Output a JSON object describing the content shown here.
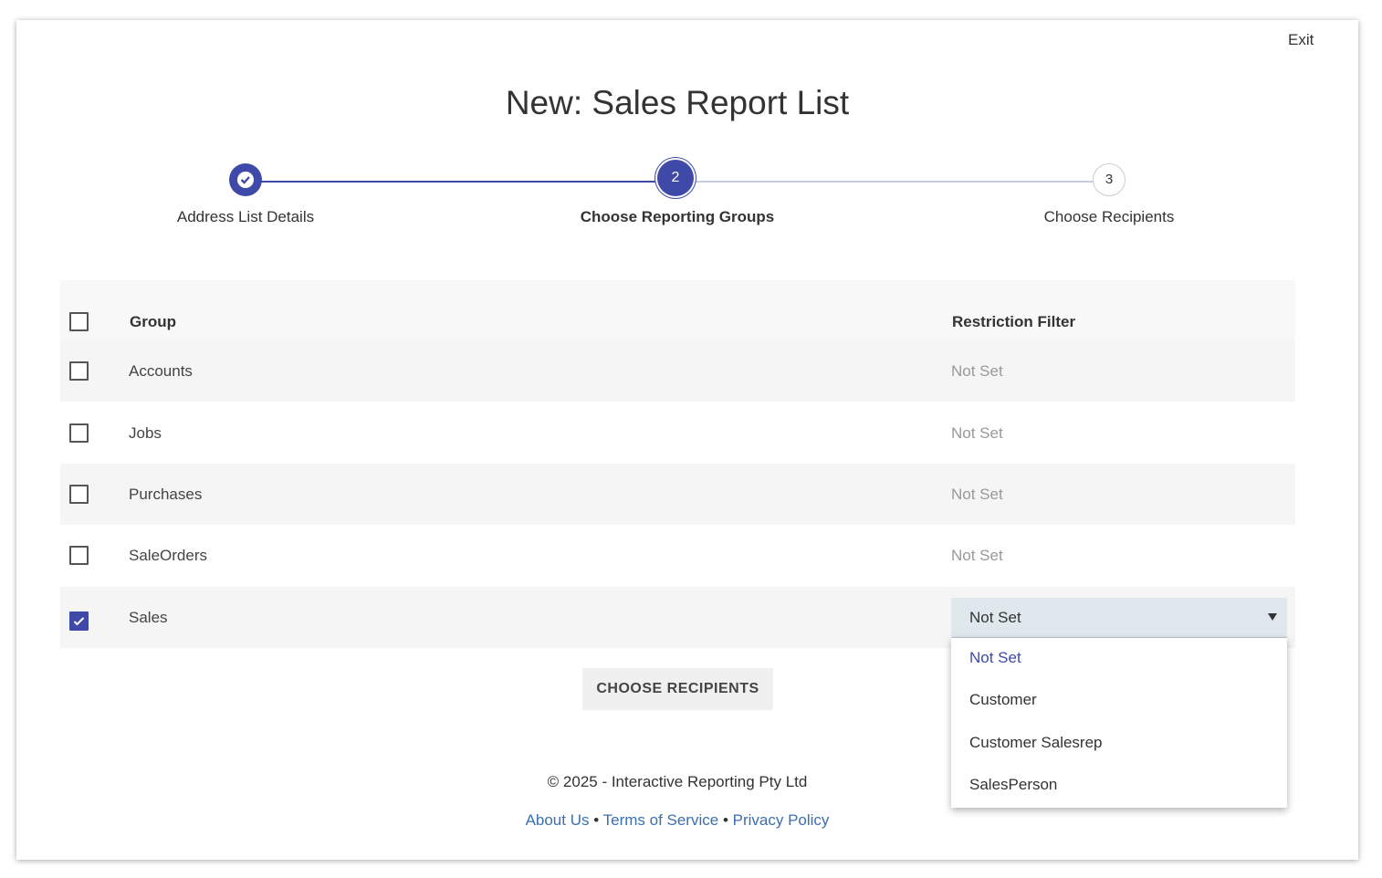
{
  "exit": "Exit",
  "title": "New: Sales Report List",
  "steps": [
    {
      "label": "Address List Details"
    },
    {
      "number": "2",
      "label": "Choose Reporting Groups"
    },
    {
      "number": "3",
      "label": "Choose Recipients"
    }
  ],
  "table": {
    "headers": [
      "Group",
      "Restriction Filter"
    ],
    "rows": [
      [
        "Accounts",
        "Not Set"
      ],
      [
        "Jobs",
        "Not Set"
      ],
      [
        "Purchases",
        "Not Set"
      ],
      [
        "SaleOrders",
        "Not Set"
      ],
      [
        "Sales",
        "Not Set"
      ]
    ]
  },
  "dropdown": {
    "options": [
      "Not Set",
      "Customer",
      "Customer Salesrep",
      "SalesPerson"
    ]
  },
  "button": "CHOOSE RECIPIENTS",
  "footer": {
    "copyright": "© 2025 - Interactive Reporting Pty Ltd",
    "links": [
      "About Us",
      "Terms of Service",
      "Privacy Policy"
    ],
    "separator": "•"
  }
}
